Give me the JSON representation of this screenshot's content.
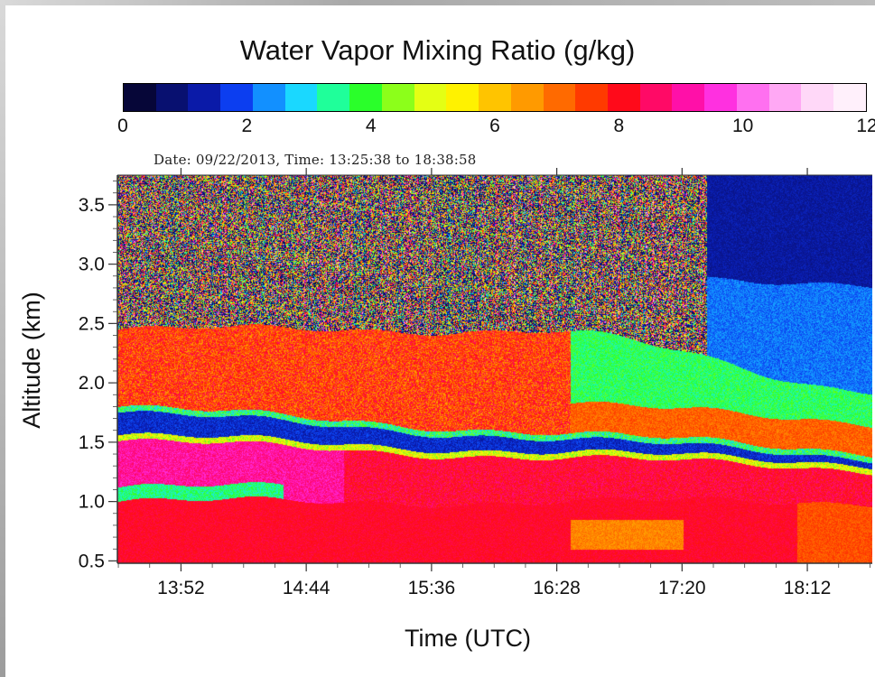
{
  "chart_data": {
    "type": "heatmap",
    "title": "Water Vapor Mixing Ratio (g/kg)",
    "subtitle": "Date: 09/22/2013, Time: 13:25:38 to 18:38:58",
    "xlabel": "Time (UTC)",
    "ylabel": "Altitude (km)",
    "x_tick_labels": [
      "13:52",
      "14:44",
      "15:36",
      "16:28",
      "17:20",
      "18:12"
    ],
    "x_tick_minutes": [
      832,
      884,
      936,
      988,
      1040,
      1092
    ],
    "x_range_minutes": [
      805.6,
      1118.97
    ],
    "y_tick_labels": [
      "0.5",
      "1.0",
      "1.5",
      "2.0",
      "2.5",
      "3.0",
      "3.5"
    ],
    "y_ticks": [
      0.5,
      1.0,
      1.5,
      2.0,
      2.5,
      3.0,
      3.5
    ],
    "ylim": [
      0.48,
      3.75
    ],
    "colorbar": {
      "min": 0,
      "max": 12,
      "tick_labels": [
        "0",
        "2",
        "4",
        "6",
        "8",
        "10",
        "12"
      ],
      "ticks": [
        0,
        2,
        4,
        6,
        8,
        10,
        12
      ],
      "colors": [
        "#060638",
        "#081070",
        "#0a1aa8",
        "#0c3ef0",
        "#1290ff",
        "#1ad8ff",
        "#1fff9a",
        "#2aff2a",
        "#8cff1a",
        "#e4ff14",
        "#fff200",
        "#ffc400",
        "#ff9a00",
        "#ff6a00",
        "#ff3a00",
        "#ff0a1a",
        "#ff0a66",
        "#ff10a8",
        "#ff30e0",
        "#ff70f0",
        "#ffa8f4",
        "#ffd8f8",
        "#fff0fb"
      ]
    },
    "layers": [
      {
        "time_range": [
          "13:25",
          "18:38"
        ],
        "altitude_km": [
          0.5,
          1.0
        ],
        "mixing_ratio_gkg": 8
      },
      {
        "time_range": [
          "13:25",
          "14:35"
        ],
        "altitude_km": [
          1.0,
          1.1
        ],
        "mixing_ratio_gkg": 3
      },
      {
        "time_range": [
          "13:25",
          "18:38"
        ],
        "altitude_km": [
          1.1,
          1.55
        ],
        "mixing_ratio_gkg": 8.5
      },
      {
        "time_range": [
          "13:25",
          "18:38"
        ],
        "altitude_km": [
          1.4,
          1.8
        ],
        "mixing_ratio_gkg": 1
      },
      {
        "time_range": [
          "13:25",
          "16:30"
        ],
        "altitude_km": [
          1.8,
          2.5
        ],
        "mixing_ratio_gkg": 8
      },
      {
        "time_range": [
          "16:30",
          "18:38"
        ],
        "altitude_km": [
          1.8,
          2.0
        ],
        "mixing_ratio_gkg": 7.5
      },
      {
        "time_range": [
          "16:30",
          "18:38"
        ],
        "altitude_km": [
          2.0,
          2.4
        ],
        "mixing_ratio_gkg": 3.8
      },
      {
        "time_range": [
          "17:20",
          "18:38"
        ],
        "altitude_km": [
          2.4,
          2.9
        ],
        "mixing_ratio_gkg": 2.2
      },
      {
        "time_range": [
          "13:25",
          "17:20"
        ],
        "altitude_km": [
          2.5,
          3.75
        ],
        "mixing_ratio_gkg": "noisy, 0-12"
      },
      {
        "time_range": [
          "17:20",
          "18:38"
        ],
        "altitude_km": [
          2.9,
          3.75
        ],
        "mixing_ratio_gkg": 0.8
      }
    ]
  }
}
